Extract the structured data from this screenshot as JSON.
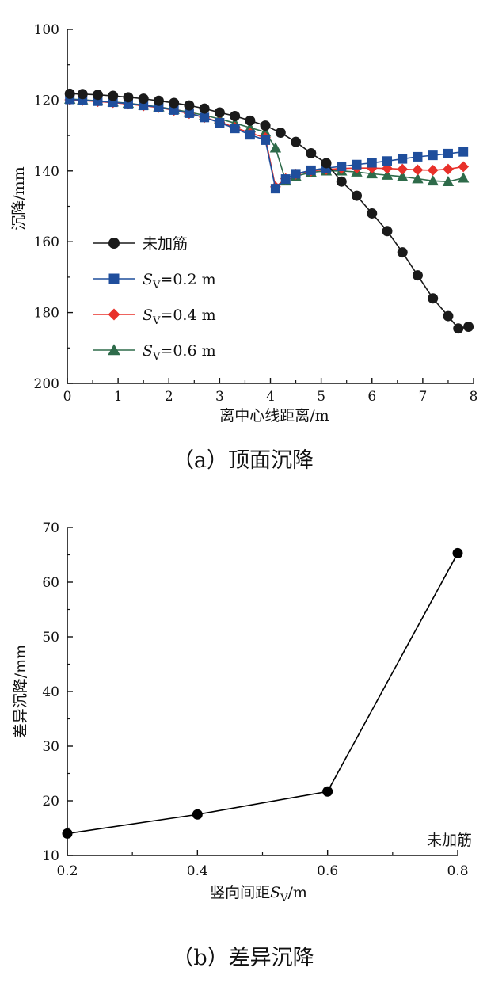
{
  "chart_data": [
    {
      "type": "line",
      "title": "",
      "caption": "（a）顶面沉降",
      "xlabel": "离中心线距离/m",
      "ylabel": "沉降/mm",
      "xlim": [
        0,
        8
      ],
      "ylim": [
        100,
        200
      ],
      "y_inverted": true,
      "xticks": [
        0,
        1,
        2,
        3,
        4,
        5,
        6,
        7,
        8
      ],
      "yticks": [
        100,
        120,
        140,
        160,
        180,
        200
      ],
      "legend_position": "left-middle",
      "series": [
        {
          "name": "未加筋",
          "marker": "circle",
          "color": "#1a1a1a",
          "x": [
            0.05,
            0.3,
            0.6,
            0.9,
            1.2,
            1.5,
            1.8,
            2.1,
            2.4,
            2.7,
            3.0,
            3.3,
            3.6,
            3.9,
            4.2,
            4.5,
            4.8,
            5.1,
            5.4,
            5.7,
            6.0,
            6.3,
            6.6,
            6.9,
            7.2,
            7.5,
            7.7,
            7.9
          ],
          "y": [
            118.2,
            118.3,
            118.5,
            118.8,
            119.2,
            119.6,
            120.2,
            120.8,
            121.5,
            122.4,
            123.5,
            124.5,
            125.8,
            127.2,
            129.2,
            131.8,
            135.0,
            137.8,
            143.0,
            147.0,
            152.0,
            157.0,
            163.0,
            169.5,
            176.0,
            181.0,
            184.5,
            184.0
          ]
        },
        {
          "name": "Sv=0.2 m",
          "marker": "square",
          "color": "#1f4e9c",
          "x": [
            0.05,
            0.3,
            0.6,
            0.9,
            1.2,
            1.5,
            1.8,
            2.1,
            2.4,
            2.7,
            3.0,
            3.3,
            3.6,
            3.9,
            4.1,
            4.3,
            4.5,
            4.8,
            5.1,
            5.4,
            5.7,
            6.0,
            6.3,
            6.6,
            6.9,
            7.2,
            7.5,
            7.8
          ],
          "y": [
            119.8,
            120.0,
            120.3,
            120.6,
            121.0,
            121.5,
            122.0,
            122.8,
            123.7,
            124.9,
            126.4,
            128.0,
            129.8,
            131.3,
            145.0,
            142.3,
            140.8,
            139.8,
            139.2,
            138.7,
            138.2,
            137.7,
            137.2,
            136.6,
            136.0,
            135.6,
            135.1,
            134.6
          ]
        },
        {
          "name": "Sv=0.4 m",
          "marker": "diamond",
          "color": "#e8302a",
          "x": [
            0.05,
            0.3,
            0.6,
            0.9,
            1.2,
            1.5,
            1.8,
            2.1,
            2.4,
            2.7,
            3.0,
            3.3,
            3.6,
            3.9,
            4.1,
            4.3,
            4.5,
            4.8,
            5.1,
            5.4,
            5.7,
            6.0,
            6.3,
            6.6,
            6.9,
            7.2,
            7.5,
            7.8
          ],
          "y": [
            119.9,
            120.1,
            120.4,
            120.7,
            121.1,
            121.6,
            122.1,
            122.9,
            123.8,
            124.9,
            126.2,
            127.7,
            129.3,
            130.6,
            144.5,
            142.2,
            140.9,
            140.0,
            139.6,
            139.3,
            139.2,
            139.2,
            139.3,
            139.5,
            139.7,
            139.8,
            139.5,
            138.8
          ]
        },
        {
          "name": "Sv=0.6 m",
          "marker": "triangle",
          "color": "#2e6b4a",
          "x": [
            0.05,
            0.3,
            0.6,
            0.9,
            1.2,
            1.5,
            1.8,
            2.1,
            2.4,
            2.7,
            3.0,
            3.3,
            3.6,
            3.9,
            4.1,
            4.3,
            4.5,
            4.8,
            5.1,
            5.4,
            5.7,
            6.0,
            6.3,
            6.6,
            6.9,
            7.2,
            7.5,
            7.8
          ],
          "y": [
            119.7,
            119.9,
            120.2,
            120.5,
            120.9,
            121.4,
            121.9,
            122.6,
            123.4,
            124.3,
            125.3,
            126.5,
            127.8,
            129.0,
            133.5,
            142.8,
            141.5,
            140.4,
            140.0,
            140.0,
            140.3,
            140.8,
            141.2,
            141.6,
            142.2,
            142.8,
            143.0,
            142.0
          ]
        }
      ],
      "legend": [
        {
          "marker": "circle",
          "color": "#1a1a1a",
          "label": "未加筋"
        },
        {
          "marker": "square",
          "color": "#1f4e9c",
          "sym": "S",
          "sub": "V",
          "rest": "=0.2 m"
        },
        {
          "marker": "diamond",
          "color": "#e8302a",
          "sym": "S",
          "sub": "V",
          "rest": "=0.4 m"
        },
        {
          "marker": "triangle",
          "color": "#2e6b4a",
          "sym": "S",
          "sub": "V",
          "rest": "=0.6 m"
        }
      ]
    },
    {
      "type": "line",
      "title": "",
      "caption": "（b）差异沉降",
      "xlabel_pre": "竖向间距",
      "xlabel_sym": "S",
      "xlabel_sub": "V",
      "xlabel_post": "/m",
      "ylabel": "差异沉降/mm",
      "xlim": [
        0.2,
        0.8
      ],
      "ylim": [
        10,
        70
      ],
      "xticks": [
        0.2,
        0.4,
        0.6,
        0.8
      ],
      "xtick_labels": [
        "0.2",
        "0.4",
        "0.6",
        "0.8"
      ],
      "yticks": [
        10,
        20,
        30,
        40,
        50,
        60,
        70
      ],
      "series": [
        {
          "marker": "circle",
          "color": "#000000",
          "x": [
            0.2,
            0.4,
            0.6,
            0.8
          ],
          "y": [
            14,
            17.5,
            21.7,
            65.3
          ]
        }
      ],
      "annotation": {
        "text": "未加筋",
        "x": 0.8,
        "y": 12.5
      }
    }
  ]
}
